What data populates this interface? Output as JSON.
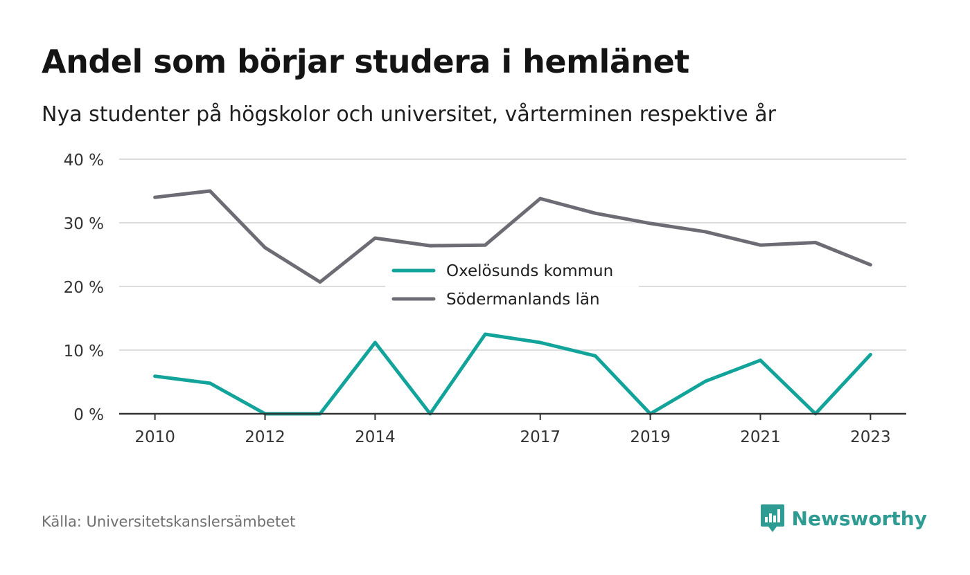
{
  "title": "Andel som börjar studera i hemlänet",
  "subtitle": "Nya studenter på högskolor och universitet, vårterminen respektive år",
  "source": "Källa: Universitetskanslersämbetet",
  "brand": "Newsworthy",
  "colors": {
    "series_1": "#12a39a",
    "series_2": "#6d6b73",
    "grid": "#dddddd",
    "axis": "#333333",
    "brand": "#2f9c93"
  },
  "chart_data": {
    "type": "line",
    "x": [
      2010,
      2011,
      2012,
      2013,
      2014,
      2015,
      2016,
      2017,
      2018,
      2019,
      2020,
      2021,
      2022,
      2023
    ],
    "x_tick_values": [
      2010,
      2012,
      2014,
      2017,
      2019,
      2021,
      2023
    ],
    "x_tick_labels": [
      "2010",
      "2012",
      "2014",
      "2017",
      "2019",
      "2021",
      "2023"
    ],
    "xlim": [
      2009.35,
      2023.65
    ],
    "ylim": [
      0,
      40
    ],
    "y_ticks": [
      0,
      10,
      20,
      30,
      40
    ],
    "y_tick_labels": [
      "0 %",
      "10 %",
      "20 %",
      "30 %",
      "40 %"
    ],
    "grid": true,
    "legend_position": "center",
    "series": [
      {
        "name": "Oxelösunds kommun",
        "color": "#12a39a",
        "values": [
          5.9,
          4.8,
          0,
          0,
          11.2,
          0,
          12.5,
          11.2,
          9.1,
          0,
          5.1,
          8.4,
          0,
          9.3
        ]
      },
      {
        "name": "Södermanlands län",
        "color": "#6d6b73",
        "values": [
          34.0,
          35.0,
          26.1,
          20.7,
          27.6,
          26.4,
          26.5,
          33.8,
          31.5,
          29.9,
          28.6,
          26.5,
          26.9,
          23.4
        ]
      }
    ]
  }
}
